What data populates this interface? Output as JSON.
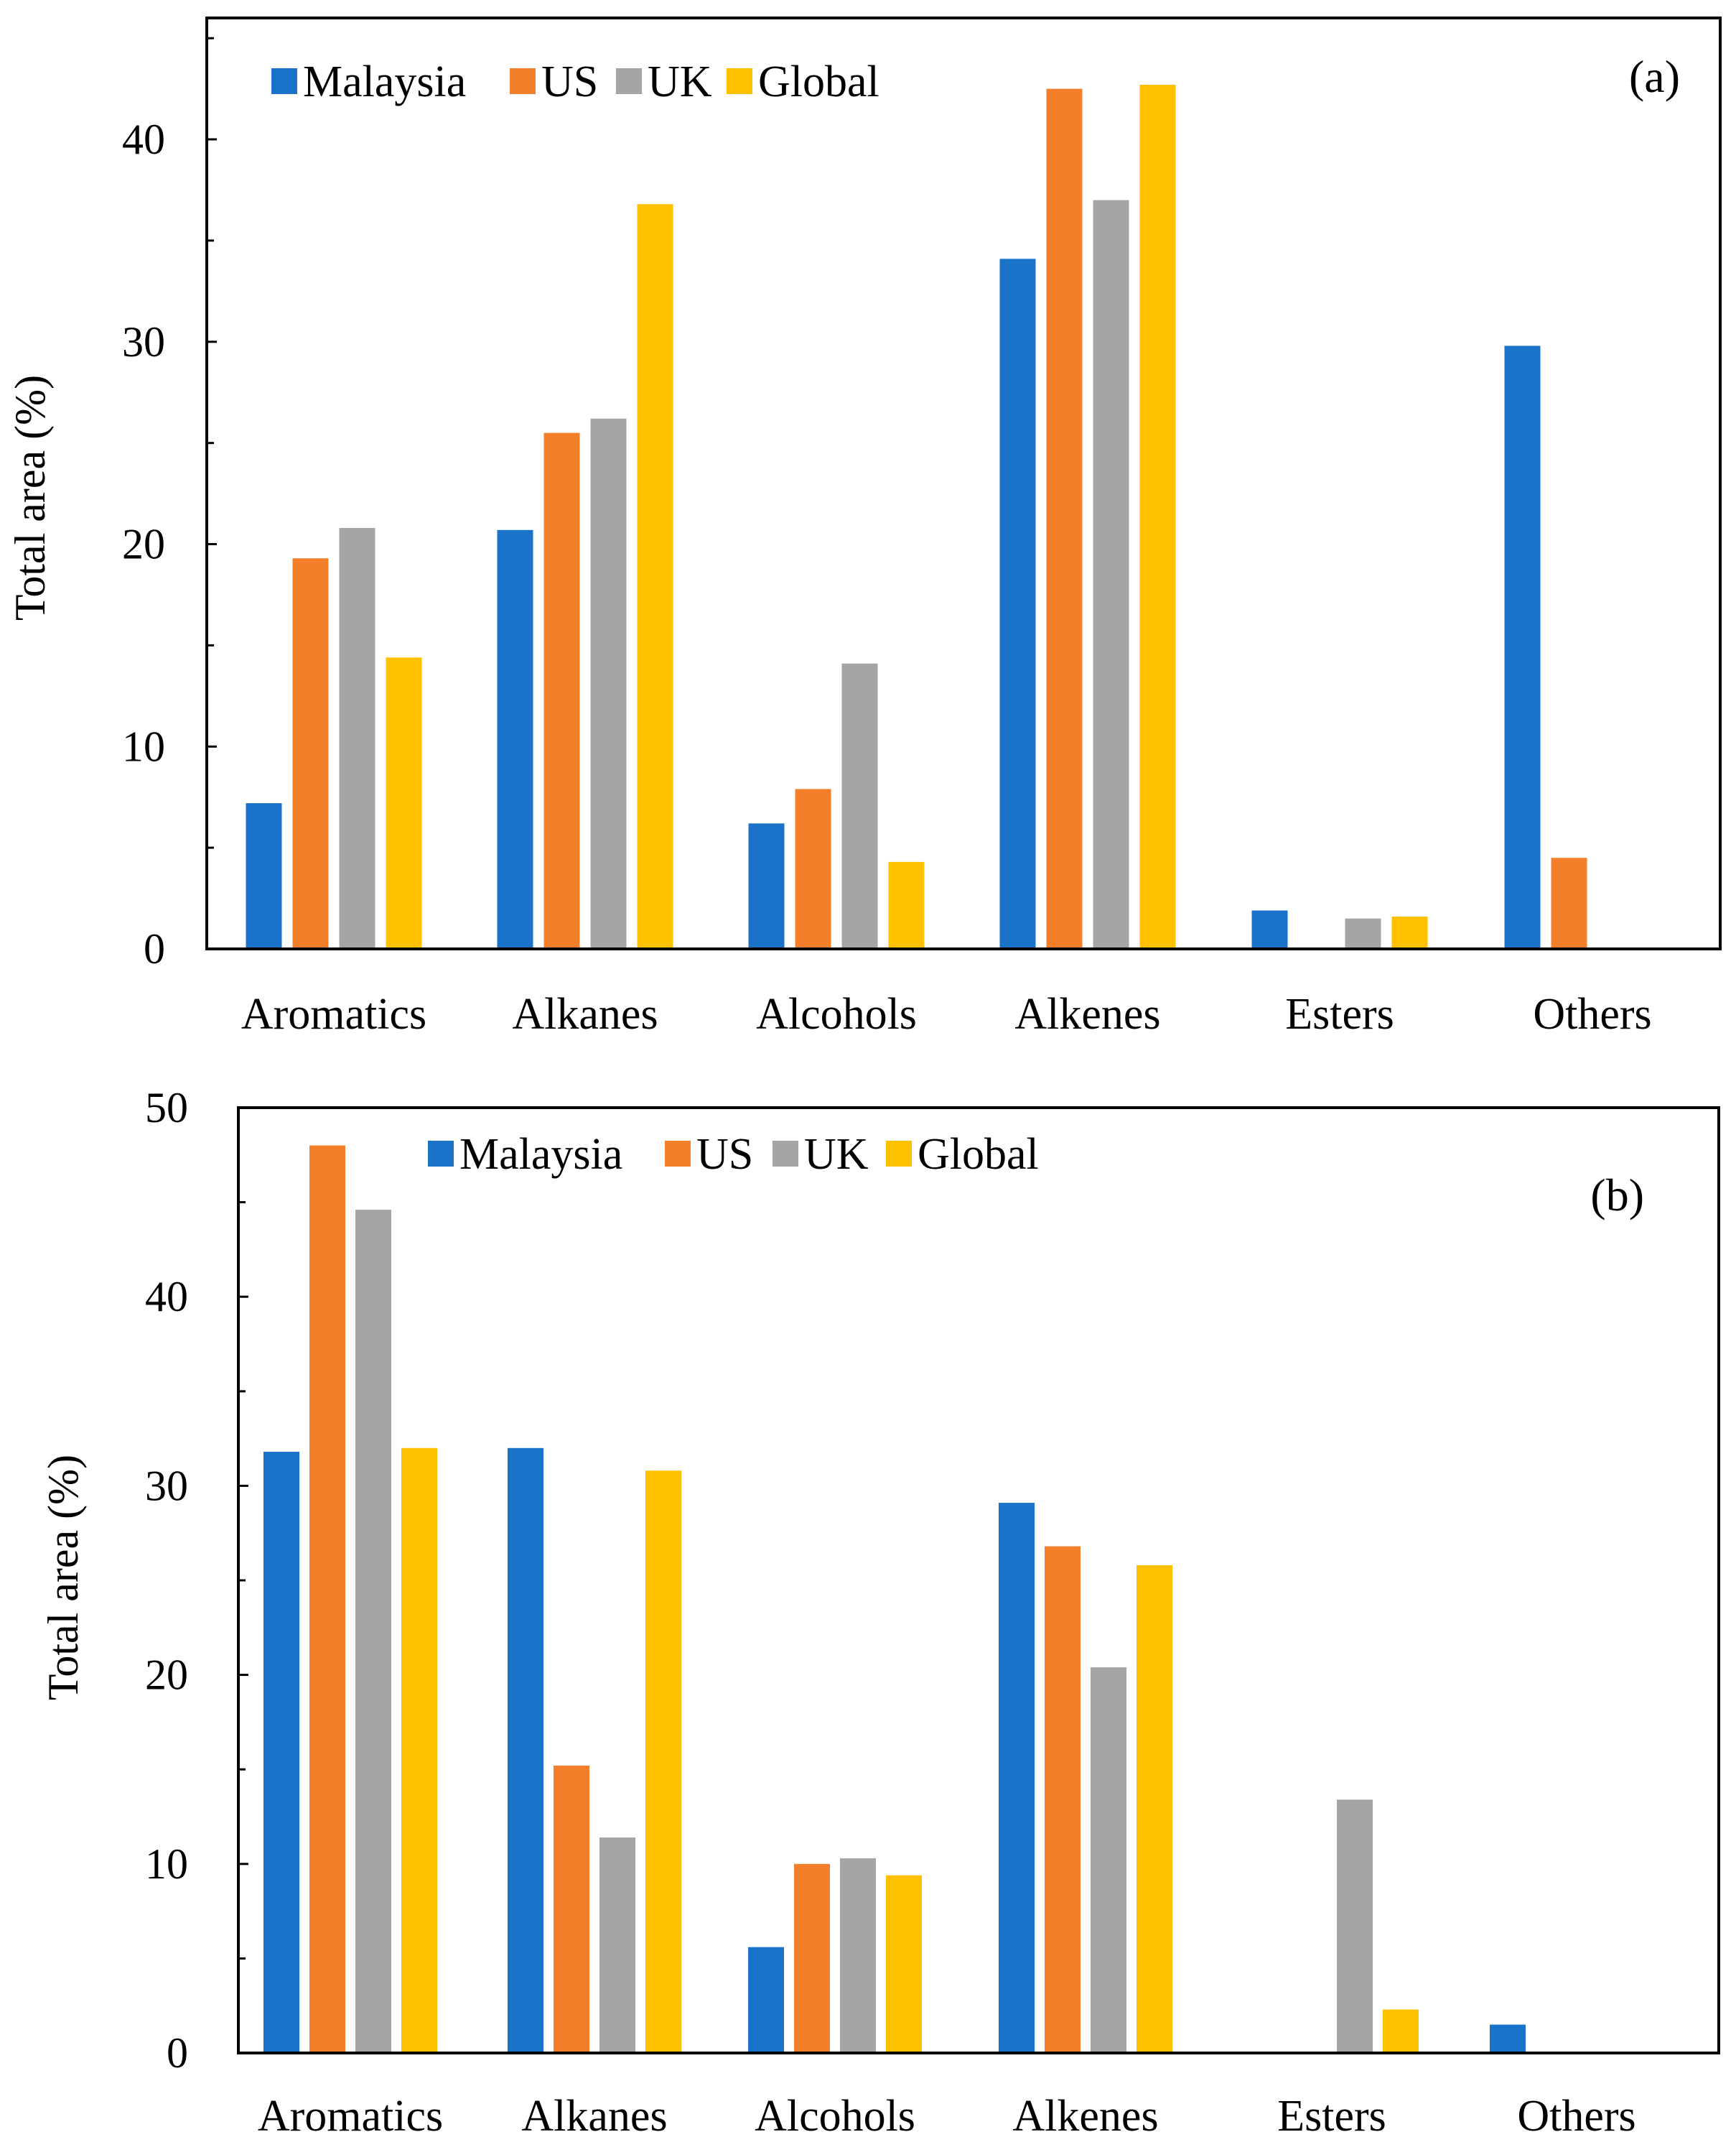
{
  "chart_data": [
    {
      "type": "bar",
      "panel_label": "(a)",
      "categories": [
        "Aromatics",
        "Alkanes",
        "Alcohols",
        "Alkenes",
        "Esters",
        "Others"
      ],
      "series": [
        {
          "name": "Malaysia",
          "color": "#1a73c8",
          "values": [
            7.2,
            20.7,
            6.2,
            34.1,
            1.9,
            29.8
          ]
        },
        {
          "name": "US",
          "color": "#f47f2b",
          "values": [
            19.3,
            25.5,
            7.9,
            42.5,
            0,
            4.5
          ]
        },
        {
          "name": "UK",
          "color": "#a5a5a5",
          "values": [
            20.8,
            26.2,
            14.1,
            37.0,
            1.5,
            0
          ]
        },
        {
          "name": "Global",
          "color": "#ffc000",
          "values": [
            14.4,
            36.8,
            4.3,
            42.7,
            1.6,
            0
          ]
        }
      ],
      "title": "",
      "xlabel": "",
      "ylabel": "Total area (%)",
      "ylim": [
        0,
        46
      ],
      "yticks": [
        0,
        10,
        20,
        30,
        40
      ],
      "grid": false,
      "legend_position": "top-left"
    },
    {
      "type": "bar",
      "panel_label": "(b)",
      "categories": [
        "Aromatics",
        "Alkanes",
        "Alcohols",
        "Alkenes",
        "Esters",
        "Others"
      ],
      "series": [
        {
          "name": "Malaysia",
          "color": "#1a73c8",
          "values": [
            31.8,
            32.0,
            5.6,
            29.1,
            0,
            1.5
          ]
        },
        {
          "name": "US",
          "color": "#f47f2b",
          "values": [
            48.0,
            15.2,
            10.0,
            26.8,
            0,
            0
          ]
        },
        {
          "name": "UK",
          "color": "#a5a5a5",
          "values": [
            44.6,
            11.4,
            10.3,
            20.4,
            13.4,
            0
          ]
        },
        {
          "name": "Global",
          "color": "#ffc000",
          "values": [
            32.0,
            30.8,
            9.4,
            25.8,
            2.3,
            0
          ]
        }
      ],
      "title": "",
      "xlabel": "",
      "ylabel": "Total area (%)",
      "ylim": [
        0,
        50
      ],
      "yticks": [
        0,
        10,
        20,
        30,
        40,
        50
      ],
      "grid": false,
      "legend_position": "top-center"
    }
  ]
}
